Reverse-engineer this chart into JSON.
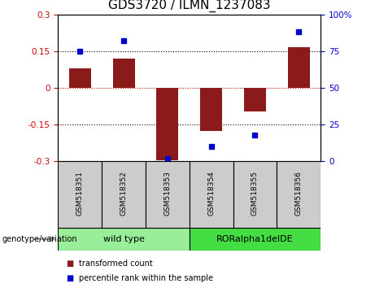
{
  "title": "GDS3720 / ILMN_1237083",
  "samples": [
    "GSM518351",
    "GSM518352",
    "GSM518353",
    "GSM518354",
    "GSM518355",
    "GSM518356"
  ],
  "transformed_counts": [
    0.08,
    0.12,
    -0.295,
    -0.175,
    -0.095,
    0.165
  ],
  "percentile_ranks": [
    75,
    82,
    2,
    10,
    18,
    88
  ],
  "ylim_left": [
    -0.3,
    0.3
  ],
  "ylim_right": [
    0,
    100
  ],
  "bar_color": "#8B1A1A",
  "dot_color": "#0000CC",
  "zero_line_color": "#CC0000",
  "grid_color": "black",
  "groups": [
    {
      "label": "wild type",
      "indices": [
        0,
        1,
        2
      ],
      "color": "#99EE99"
    },
    {
      "label": "RORalpha1delDE",
      "indices": [
        3,
        4,
        5
      ],
      "color": "#44DD44"
    }
  ],
  "group_label": "genotype/variation",
  "legend_bar_label": "transformed count",
  "legend_dot_label": "percentile rank within the sample",
  "title_fontsize": 11,
  "tick_fontsize": 7.5,
  "bar_width": 0.5,
  "background_color": "#ffffff",
  "plot_bg_color": "#ffffff",
  "tick_area_color": "#cccccc"
}
